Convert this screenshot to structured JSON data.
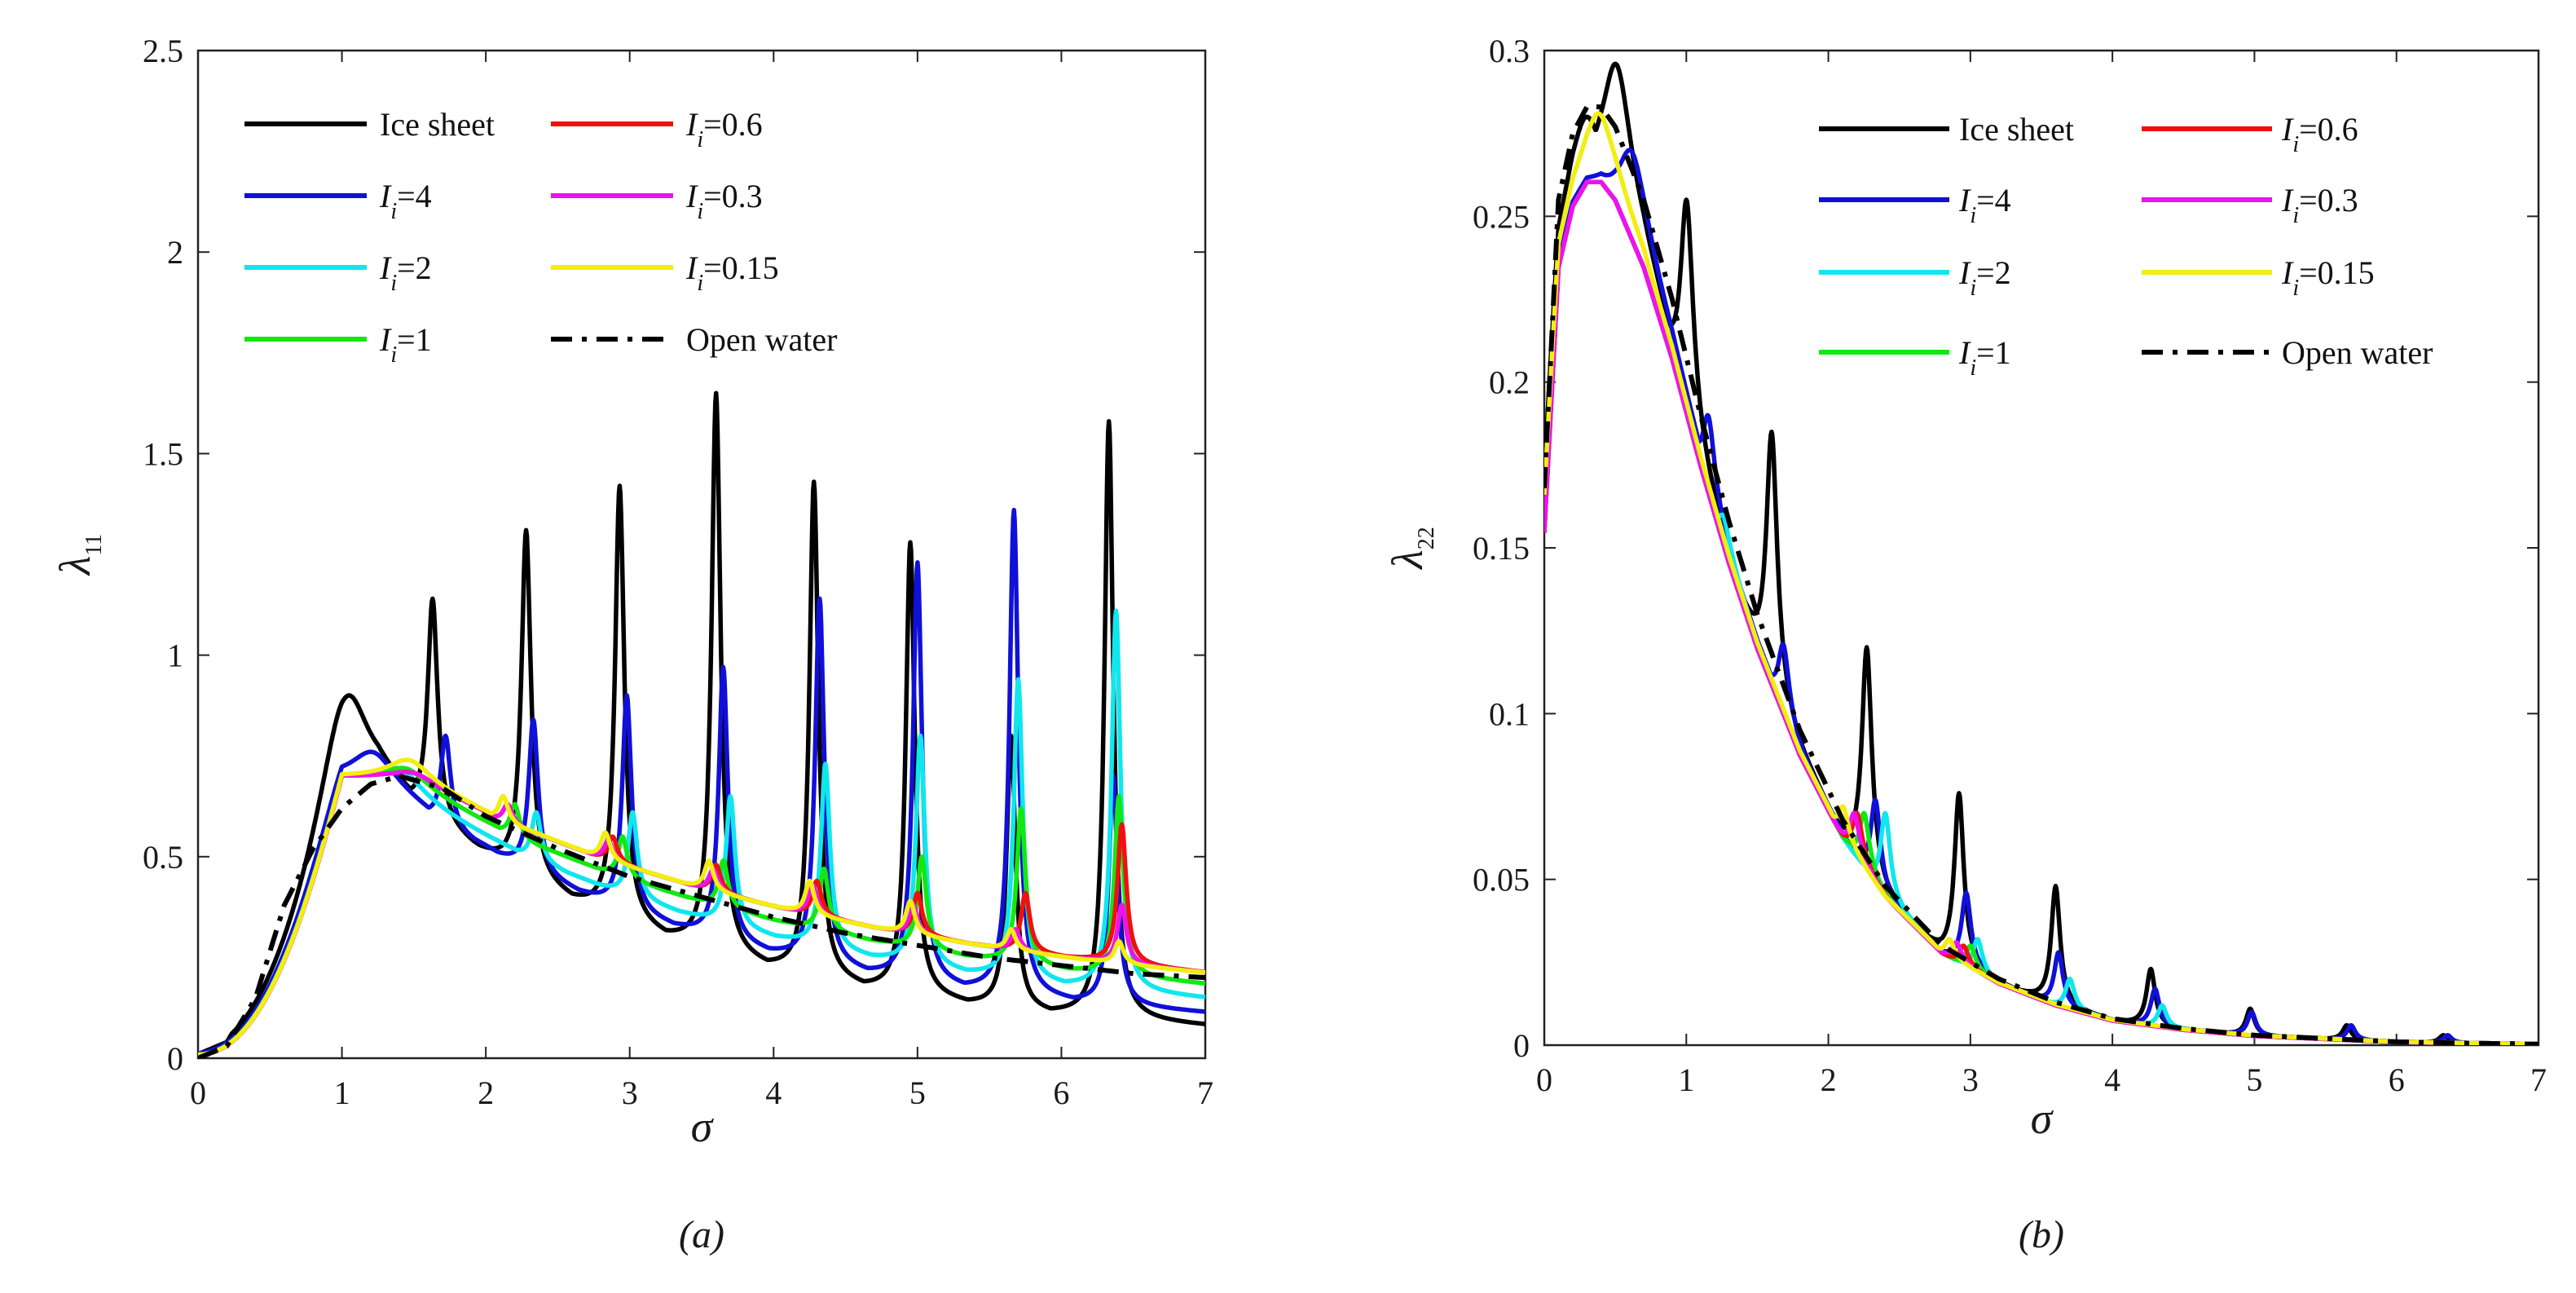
{
  "chart_data": [
    {
      "id": "a",
      "type": "line",
      "caption": "(a)",
      "xlabel": "σ",
      "ylabel": "λ",
      "ylabel_sub": "11",
      "xlim": [
        0,
        7
      ],
      "ylim": [
        0,
        2.5
      ],
      "xticks": [
        "0",
        "1",
        "2",
        "3",
        "4",
        "5",
        "6",
        "7"
      ],
      "yticks": [
        "0",
        "0.5",
        "1",
        "1.5",
        "2",
        "2.5"
      ],
      "legend_location": "top-left",
      "series": [
        {
          "name": "Ice sheet",
          "color": "#000000",
          "style": "solid",
          "ampScale": 1.0,
          "peaks": [
            [
              1.05,
              0.9
            ],
            [
              1.63,
              1.14
            ],
            [
              2.28,
              1.31
            ],
            [
              2.93,
              1.42
            ],
            [
              3.6,
              1.65
            ],
            [
              4.28,
              1.43
            ],
            [
              4.95,
              1.28
            ],
            [
              5.65,
              0.8
            ],
            [
              6.33,
              1.58
            ]
          ]
        },
        {
          "name": "I_i=4",
          "color": "#1010d8",
          "style": "solid",
          "ampScale": 1.0,
          "peaks": [
            [
              1.2,
              0.76
            ],
            [
              1.72,
              0.8
            ],
            [
              2.33,
              0.84
            ],
            [
              2.98,
              0.9
            ],
            [
              3.65,
              0.97
            ],
            [
              4.32,
              1.14
            ],
            [
              5.0,
              1.23
            ],
            [
              5.67,
              1.36
            ],
            [
              6.36,
              0.7
            ]
          ]
        },
        {
          "name": "I_i=2",
          "color": "#10e6ee",
          "style": "solid",
          "ampScale": 1.0,
          "peaks": [
            [
              1.38,
              0.72
            ],
            [
              2.35,
              0.61
            ],
            [
              3.02,
              0.61
            ],
            [
              3.7,
              0.65
            ],
            [
              4.36,
              0.73
            ],
            [
              5.02,
              0.8
            ],
            [
              5.7,
              0.94
            ],
            [
              6.38,
              1.11
            ]
          ]
        },
        {
          "name": "I_i=1",
          "color": "#12e812",
          "style": "solid",
          "ampScale": 1.0,
          "peaks": [
            [
              1.42,
              0.72
            ],
            [
              2.2,
              0.63
            ],
            [
              2.95,
              0.55
            ],
            [
              3.65,
              0.49
            ],
            [
              4.35,
              0.47
            ],
            [
              5.03,
              0.5
            ],
            [
              5.72,
              0.62
            ],
            [
              6.4,
              0.65
            ]
          ]
        },
        {
          "name": "I_i=0.6",
          "color": "#f01010",
          "style": "solid",
          "ampScale": 1.0,
          "peaks": [
            [
              1.45,
              0.71
            ],
            [
              2.15,
              0.63
            ],
            [
              2.88,
              0.55
            ],
            [
              3.6,
              0.48
            ],
            [
              4.3,
              0.44
            ],
            [
              5.0,
              0.41
            ],
            [
              5.75,
              0.41
            ],
            [
              6.42,
              0.58
            ]
          ]
        },
        {
          "name": "I_i=0.3",
          "color": "#ee12ee",
          "style": "solid",
          "ampScale": 1.0,
          "peaks": [
            [
              1.45,
              0.71
            ],
            [
              2.15,
              0.63
            ],
            [
              2.85,
              0.54
            ],
            [
              3.58,
              0.47
            ],
            [
              4.27,
              0.43
            ],
            [
              4.97,
              0.38
            ],
            [
              5.68,
              0.32
            ],
            [
              6.42,
              0.38
            ]
          ]
        },
        {
          "name": "I_i=0.15",
          "color": "#f2ee10",
          "style": "solid",
          "ampScale": 1.0,
          "peaks": [
            [
              1.45,
              0.74
            ],
            [
              2.12,
              0.65
            ],
            [
              2.83,
              0.56
            ],
            [
              3.55,
              0.49
            ],
            [
              4.25,
              0.44
            ],
            [
              4.95,
              0.39
            ],
            [
              5.65,
              0.32
            ],
            [
              6.4,
              0.29
            ]
          ]
        },
        {
          "name": "Open water",
          "color": "#000000",
          "style": "dashdot",
          "ampScale": 0,
          "x": [
            0,
            0.2,
            0.4,
            0.6,
            0.8,
            1.0,
            1.2,
            1.4,
            1.7,
            2.0,
            2.5,
            3.0,
            3.5,
            4.0,
            4.5,
            5.0,
            5.5,
            6.0,
            6.5,
            7.0
          ],
          "y": [
            0,
            0.03,
            0.15,
            0.38,
            0.52,
            0.62,
            0.68,
            0.7,
            0.67,
            0.6,
            0.52,
            0.45,
            0.4,
            0.35,
            0.31,
            0.28,
            0.25,
            0.23,
            0.21,
            0.2
          ]
        }
      ]
    },
    {
      "id": "b",
      "type": "line",
      "caption": "(b)",
      "xlabel": "σ",
      "ylabel": "λ",
      "ylabel_sub": "22",
      "xlim": [
        0,
        7
      ],
      "ylim": [
        0,
        0.3
      ],
      "xticks": [
        "0",
        "1",
        "2",
        "3",
        "4",
        "5",
        "6",
        "7"
      ],
      "yticks": [
        "0",
        "0.05",
        "0.1",
        "0.15",
        "0.2",
        "0.25",
        "0.3"
      ],
      "legend_location": "top-right",
      "series": [
        {
          "name": "Ice sheet",
          "color": "#000000",
          "style": "solid",
          "peaks": [
            [
              0.3,
              0.28
            ],
            [
              0.5,
              0.296
            ],
            [
              1.0,
              0.255
            ],
            [
              1.6,
              0.185
            ],
            [
              2.27,
              0.12
            ],
            [
              2.92,
              0.076
            ],
            [
              3.6,
              0.048
            ],
            [
              4.27,
              0.023
            ],
            [
              4.97,
              0.011
            ],
            [
              5.65,
              0.006
            ],
            [
              6.33,
              0.003
            ]
          ]
        },
        {
          "name": "I_i=4",
          "color": "#1010d8",
          "style": "solid",
          "peaks": [
            [
              0.6,
              0.27
            ],
            [
              1.15,
              0.19
            ],
            [
              1.68,
              0.121
            ],
            [
              2.33,
              0.074
            ],
            [
              2.97,
              0.046
            ],
            [
              3.62,
              0.028
            ],
            [
              4.3,
              0.017
            ],
            [
              4.98,
              0.01
            ],
            [
              5.68,
              0.006
            ],
            [
              6.36,
              0.003
            ]
          ]
        },
        {
          "name": "I_i=2",
          "color": "#10e6ee",
          "style": "solid",
          "peaks": [
            [
              1.25,
              0.16
            ],
            [
              2.4,
              0.07
            ],
            [
              3.05,
              0.032
            ],
            [
              3.7,
              0.02
            ],
            [
              4.35,
              0.012
            ]
          ]
        },
        {
          "name": "I_i=1",
          "color": "#12e812",
          "style": "solid",
          "peaks": [
            [
              2.25,
              0.07
            ],
            [
              3.0,
              0.03
            ]
          ]
        },
        {
          "name": "I_i=0.6",
          "color": "#f01010",
          "style": "solid",
          "peaks": [
            [
              2.2,
              0.07
            ],
            [
              2.95,
              0.03
            ]
          ]
        },
        {
          "name": "I_i=0.3",
          "color": "#ee12ee",
          "style": "solid",
          "peaks": [
            [
              2.18,
              0.07
            ],
            [
              2.9,
              0.031
            ]
          ]
        },
        {
          "name": "I_i=0.15",
          "color": "#f2ee10",
          "style": "solid",
          "peaks": [
            [
              0.38,
              0.281
            ],
            [
              2.1,
              0.072
            ],
            [
              2.85,
              0.032
            ]
          ]
        },
        {
          "name": "Open water",
          "color": "#000000",
          "style": "dashdot",
          "x": [
            0,
            0.1,
            0.2,
            0.3,
            0.4,
            0.5,
            0.7,
            0.9,
            1.1,
            1.3,
            1.5,
            1.8,
            2.1,
            2.4,
            2.8,
            3.2,
            3.6,
            4.0,
            4.5,
            5.0,
            5.5,
            6.0,
            6.5,
            7.0
          ],
          "y": [
            0.168,
            0.255,
            0.275,
            0.283,
            0.283,
            0.277,
            0.255,
            0.225,
            0.19,
            0.158,
            0.13,
            0.095,
            0.068,
            0.048,
            0.03,
            0.02,
            0.013,
            0.008,
            0.005,
            0.003,
            0.002,
            0.001,
            0.0006,
            0.0003
          ]
        }
      ]
    }
  ]
}
